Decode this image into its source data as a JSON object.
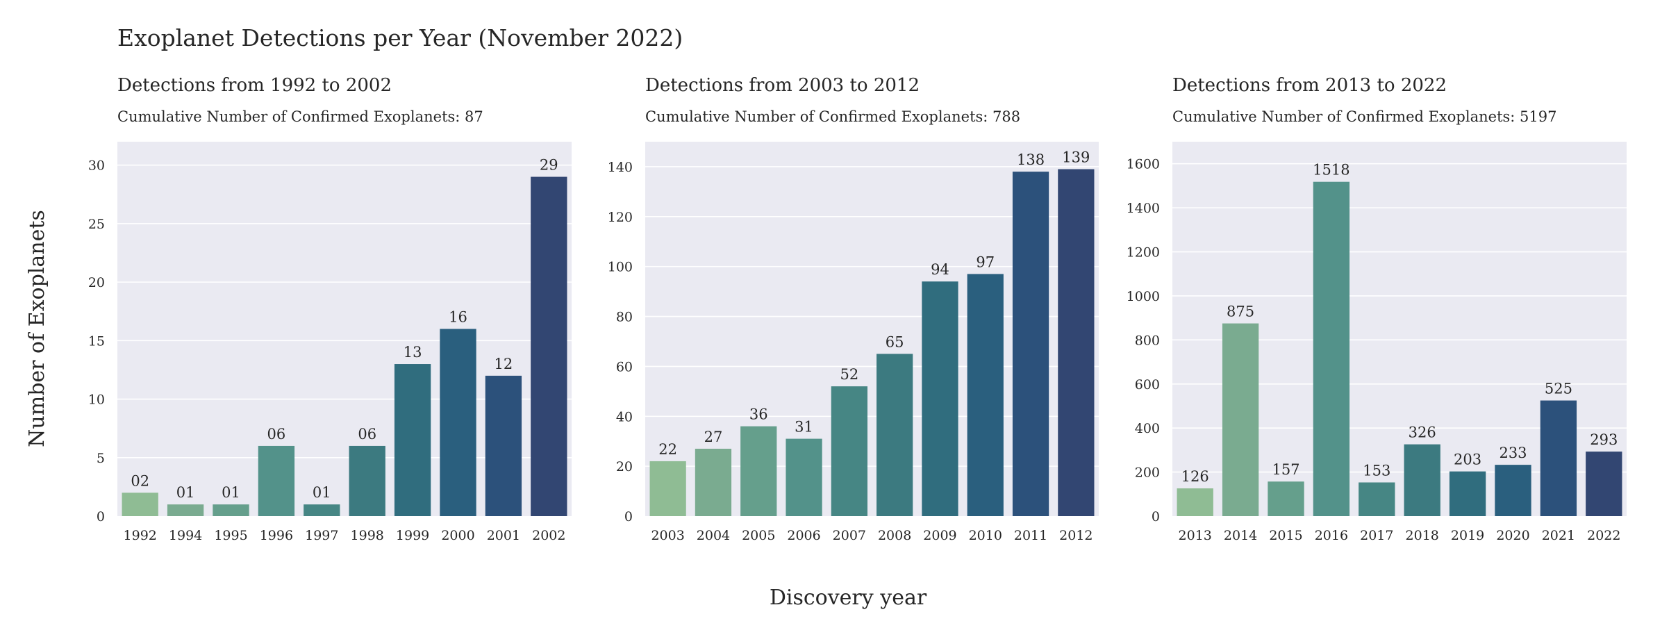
{
  "figure": {
    "title": "Exoplanet Detections per Year (November 2022)",
    "xlabel": "Discovery year",
    "ylabel": "Number of Exoplanets"
  },
  "style": {
    "panel_background": "#eaeaf2",
    "grid_color": "#ffffff",
    "text_color": "#262626",
    "palette": [
      "#8fbc94",
      "#7aab90",
      "#659f8c",
      "#53928a",
      "#468684",
      "#3c7a80",
      "#306d7e",
      "#2a5f7e",
      "#2c517b",
      "#324672"
    ]
  },
  "chart_data": [
    {
      "type": "bar",
      "title": "Detections from 1992 to 2002",
      "subtitle": "Cumulative Number of Confirmed Exoplanets: 87",
      "categories": [
        "1992",
        "1994",
        "1995",
        "1996",
        "1997",
        "1998",
        "1999",
        "2000",
        "2001",
        "2002"
      ],
      "values": [
        2,
        1,
        1,
        6,
        1,
        6,
        13,
        16,
        12,
        29
      ],
      "value_labels": [
        "02",
        "01",
        "01",
        "06",
        "01",
        "06",
        "13",
        "16",
        "12",
        "29"
      ],
      "ylim": [
        0,
        32
      ],
      "yticks": [
        0,
        5,
        10,
        15,
        20,
        25,
        30
      ],
      "grid": true
    },
    {
      "type": "bar",
      "title": "Detections from 2003 to 2012",
      "subtitle": "Cumulative Number of Confirmed Exoplanets: 788",
      "categories": [
        "2003",
        "2004",
        "2005",
        "2006",
        "2007",
        "2008",
        "2009",
        "2010",
        "2011",
        "2012"
      ],
      "values": [
        22,
        27,
        36,
        31,
        52,
        65,
        94,
        97,
        138,
        139
      ],
      "value_labels": [
        "22",
        "27",
        "36",
        "31",
        "52",
        "65",
        "94",
        "97",
        "138",
        "139"
      ],
      "ylim": [
        0,
        150
      ],
      "yticks": [
        0,
        20,
        40,
        60,
        80,
        100,
        120,
        140
      ],
      "grid": true
    },
    {
      "type": "bar",
      "title": "Detections from 2013 to 2022",
      "subtitle": "Cumulative Number of Confirmed Exoplanets: 5197",
      "categories": [
        "2013",
        "2014",
        "2015",
        "2016",
        "2017",
        "2018",
        "2019",
        "2020",
        "2021",
        "2022"
      ],
      "values": [
        126,
        875,
        157,
        1518,
        153,
        326,
        203,
        233,
        525,
        293
      ],
      "value_labels": [
        "126",
        "875",
        "157",
        "1518",
        "153",
        "326",
        "203",
        "233",
        "525",
        "293"
      ],
      "ylim": [
        0,
        1700
      ],
      "yticks": [
        0,
        200,
        400,
        600,
        800,
        1000,
        1200,
        1400,
        1600
      ],
      "grid": true
    }
  ]
}
